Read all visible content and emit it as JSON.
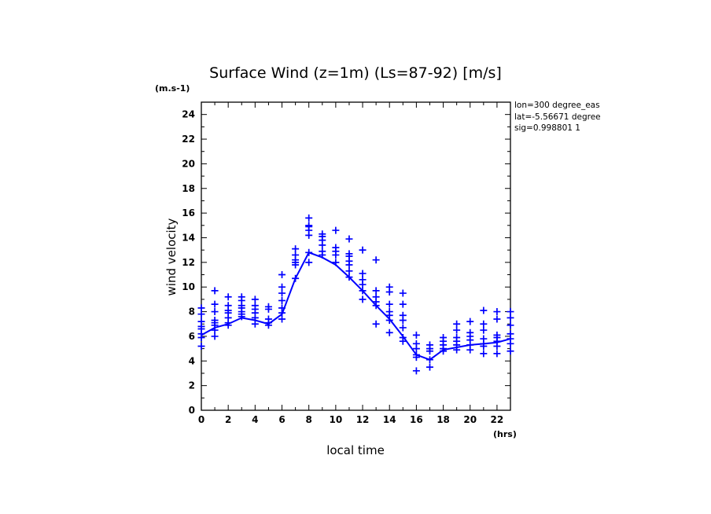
{
  "chart_data": {
    "type": "scatter",
    "title": "Surface Wind (z=1m) (Ls=87-92) [m/s]",
    "y_unit": "(m.s-1)",
    "x_unit": "(hrs)",
    "xlabel": "local time",
    "ylabel": "wind velocity",
    "xlim": [
      0,
      23
    ],
    "ylim": [
      0,
      25
    ],
    "x_ticks": [
      0,
      2,
      4,
      6,
      8,
      10,
      12,
      14,
      16,
      18,
      20,
      22
    ],
    "y_ticks": [
      0,
      2,
      4,
      6,
      8,
      10,
      12,
      14,
      16,
      18,
      20,
      22,
      24
    ],
    "annotations": [
      "lon=300 degree_eas",
      "lat=-5.56671 degree",
      "sig=0.998801 1"
    ],
    "color": "#0000ff",
    "grid": false,
    "series": [
      {
        "kind": "line",
        "x": [
          0,
          1,
          2,
          3,
          4,
          5,
          6,
          7,
          8,
          9,
          10,
          11,
          12,
          13,
          14,
          15,
          16,
          17,
          18,
          19,
          20,
          21,
          22,
          23
        ],
        "y": [
          6.1,
          6.7,
          7.0,
          7.5,
          7.3,
          7.0,
          7.8,
          10.7,
          12.8,
          12.4,
          11.8,
          10.8,
          9.7,
          8.5,
          7.4,
          6.0,
          4.5,
          4.1,
          4.9,
          5.1,
          5.3,
          5.4,
          5.5,
          5.8
        ]
      },
      {
        "kind": "scatter",
        "marker": "+",
        "points": [
          [
            0,
            5.2
          ],
          [
            0,
            5.9
          ],
          [
            0,
            6.2
          ],
          [
            0,
            6.6
          ],
          [
            0,
            6.8
          ],
          [
            0,
            7.2
          ],
          [
            0,
            7.8
          ],
          [
            0,
            8.3
          ],
          [
            1,
            6.0
          ],
          [
            1,
            6.5
          ],
          [
            1,
            6.9
          ],
          [
            1,
            7.1
          ],
          [
            1,
            7.3
          ],
          [
            1,
            8.0
          ],
          [
            1,
            8.6
          ],
          [
            1,
            9.7
          ],
          [
            2,
            6.9
          ],
          [
            2,
            7.1
          ],
          [
            2,
            7.5
          ],
          [
            2,
            7.9
          ],
          [
            2,
            8.1
          ],
          [
            2,
            8.5
          ],
          [
            2,
            9.2
          ],
          [
            3,
            7.6
          ],
          [
            3,
            7.8
          ],
          [
            3,
            8.0
          ],
          [
            3,
            8.3
          ],
          [
            3,
            8.5
          ],
          [
            3,
            8.9
          ],
          [
            3,
            9.2
          ],
          [
            4,
            7.0
          ],
          [
            4,
            7.5
          ],
          [
            4,
            7.9
          ],
          [
            4,
            8.2
          ],
          [
            4,
            8.5
          ],
          [
            4,
            9.0
          ],
          [
            5,
            6.9
          ],
          [
            5,
            7.1
          ],
          [
            5,
            7.4
          ],
          [
            5,
            8.2
          ],
          [
            5,
            8.4
          ],
          [
            6,
            7.4
          ],
          [
            6,
            7.9
          ],
          [
            6,
            8.3
          ],
          [
            6,
            8.9
          ],
          [
            6,
            9.5
          ],
          [
            6,
            10.0
          ],
          [
            6,
            11.0
          ],
          [
            7,
            10.7
          ],
          [
            7,
            11.8
          ],
          [
            7,
            12.0
          ],
          [
            7,
            12.2
          ],
          [
            7,
            12.6
          ],
          [
            7,
            13.1
          ],
          [
            8,
            12.0
          ],
          [
            8,
            12.8
          ],
          [
            8,
            14.2
          ],
          [
            8,
            14.6
          ],
          [
            8,
            14.9
          ],
          [
            8,
            15.0
          ],
          [
            8,
            15.6
          ],
          [
            9,
            12.6
          ],
          [
            9,
            12.9
          ],
          [
            9,
            13.4
          ],
          [
            9,
            13.8
          ],
          [
            9,
            14.1
          ],
          [
            9,
            14.3
          ],
          [
            10,
            12.0
          ],
          [
            10,
            12.6
          ],
          [
            10,
            12.9
          ],
          [
            10,
            13.2
          ],
          [
            10,
            14.6
          ],
          [
            11,
            10.8
          ],
          [
            11,
            11.3
          ],
          [
            11,
            11.8
          ],
          [
            11,
            12.1
          ],
          [
            11,
            12.5
          ],
          [
            11,
            12.7
          ],
          [
            11,
            13.9
          ],
          [
            12,
            9.0
          ],
          [
            12,
            9.7
          ],
          [
            12,
            10.2
          ],
          [
            12,
            10.6
          ],
          [
            12,
            11.1
          ],
          [
            12,
            13.0
          ],
          [
            13,
            7.0
          ],
          [
            13,
            8.5
          ],
          [
            13,
            8.8
          ],
          [
            13,
            9.2
          ],
          [
            13,
            9.7
          ],
          [
            13,
            12.2
          ],
          [
            14,
            6.3
          ],
          [
            14,
            7.3
          ],
          [
            14,
            7.7
          ],
          [
            14,
            8.0
          ],
          [
            14,
            8.6
          ],
          [
            14,
            9.6
          ],
          [
            14,
            10.0
          ],
          [
            15,
            5.6
          ],
          [
            15,
            5.9
          ],
          [
            15,
            6.7
          ],
          [
            15,
            7.3
          ],
          [
            15,
            7.7
          ],
          [
            15,
            8.6
          ],
          [
            15,
            9.5
          ],
          [
            16,
            3.2
          ],
          [
            16,
            4.3
          ],
          [
            16,
            4.5
          ],
          [
            16,
            5.0
          ],
          [
            16,
            5.4
          ],
          [
            16,
            6.1
          ],
          [
            17,
            3.5
          ],
          [
            17,
            4.1
          ],
          [
            17,
            4.8
          ],
          [
            17,
            5.0
          ],
          [
            17,
            5.3
          ],
          [
            18,
            4.8
          ],
          [
            18,
            5.0
          ],
          [
            18,
            5.3
          ],
          [
            18,
            5.6
          ],
          [
            18,
            5.9
          ],
          [
            19,
            4.9
          ],
          [
            19,
            5.3
          ],
          [
            19,
            5.6
          ],
          [
            19,
            5.9
          ],
          [
            19,
            6.5
          ],
          [
            19,
            7.0
          ],
          [
            20,
            4.9
          ],
          [
            20,
            5.3
          ],
          [
            20,
            5.7
          ],
          [
            20,
            6.0
          ],
          [
            20,
            6.3
          ],
          [
            20,
            7.2
          ],
          [
            21,
            4.6
          ],
          [
            21,
            5.2
          ],
          [
            21,
            5.4
          ],
          [
            21,
            5.8
          ],
          [
            21,
            6.5
          ],
          [
            21,
            7.0
          ],
          [
            21,
            8.1
          ],
          [
            22,
            4.6
          ],
          [
            22,
            5.2
          ],
          [
            22,
            5.6
          ],
          [
            22,
            5.9
          ],
          [
            22,
            6.1
          ],
          [
            22,
            7.4
          ],
          [
            22,
            8.0
          ],
          [
            23,
            4.8
          ],
          [
            23,
            5.4
          ],
          [
            23,
            5.8
          ],
          [
            23,
            6.2
          ],
          [
            23,
            6.9
          ],
          [
            23,
            7.5
          ],
          [
            23,
            8.0
          ]
        ]
      }
    ]
  }
}
